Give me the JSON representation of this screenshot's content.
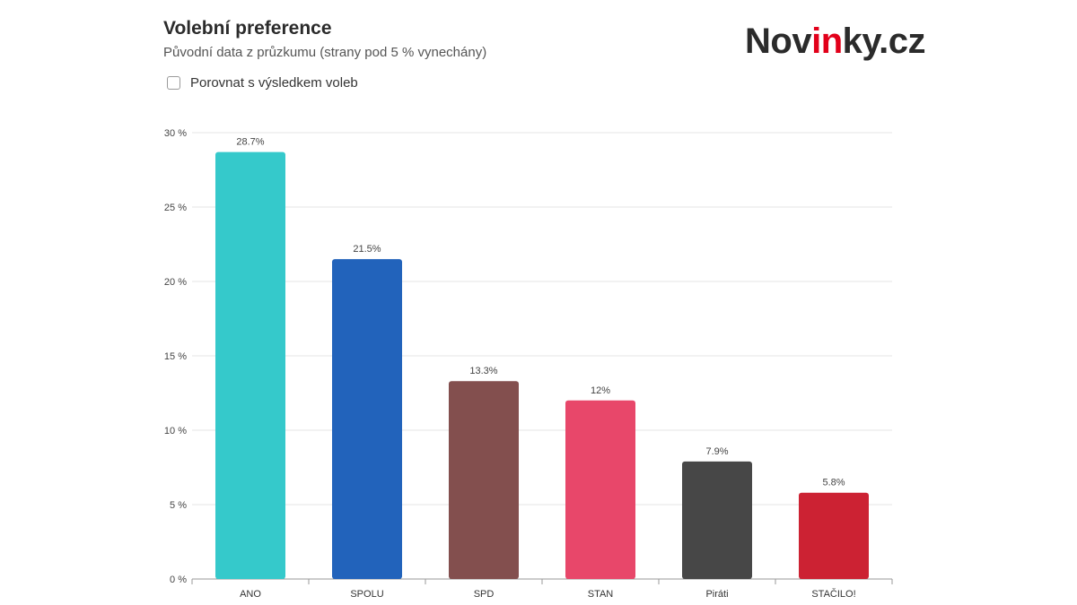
{
  "header": {
    "title": "Volební preference",
    "subtitle": "Původní data z průzkumu (strany pod 5 % vynechány)"
  },
  "logo": {
    "text_before": "Nov",
    "text_accent": "in",
    "text_after": "ky.cz",
    "accent_color": "#e2001a"
  },
  "compare": {
    "label": "Porovnat s výsledkem voleb",
    "checked": false
  },
  "chart_data": {
    "type": "bar",
    "categories": [
      "ANO",
      "SPOLU",
      "SPD",
      "STAN",
      "Piráti",
      "STAČILO!"
    ],
    "values": [
      28.7,
      21.5,
      13.3,
      12,
      7.9,
      5.8
    ],
    "value_labels": [
      "28.7%",
      "21.5%",
      "13.3%",
      "12%",
      "7.9%",
      "5.8%"
    ],
    "colors": [
      "#35c9cb",
      "#2263bb",
      "#834f4e",
      "#e8476a",
      "#474747",
      "#cc2233"
    ],
    "ylim": [
      0,
      30
    ],
    "yticks": [
      0,
      5,
      10,
      15,
      20,
      25,
      30
    ],
    "ytick_labels": [
      "0 %",
      "5 %",
      "10 %",
      "15 %",
      "20 %",
      "25 %",
      "30 %"
    ],
    "grid": true
  }
}
